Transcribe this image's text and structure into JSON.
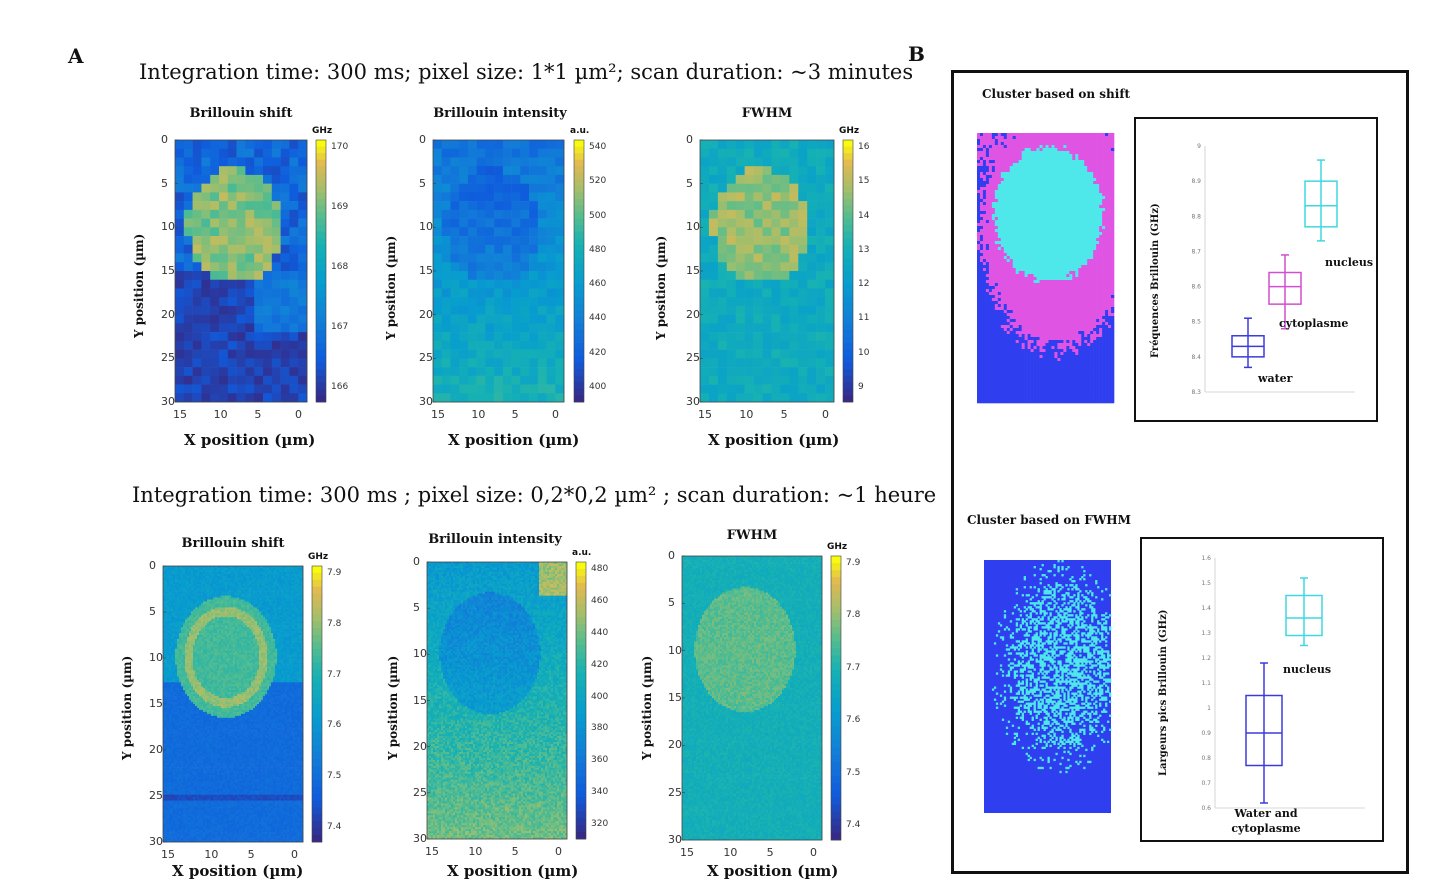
{
  "panel_a": {
    "label": "A",
    "row1": {
      "title": "Integration time: 300 ms; pixel size: 1*1 µm²; scan duration: ~3 minutes",
      "maps": [
        {
          "title": "Brillouin shift",
          "unit": "GHz",
          "cb_ticks": [
            "170",
            "169",
            "168",
            "167",
            "166"
          ]
        },
        {
          "title": "Brillouin intensity",
          "unit": "a.u.",
          "cb_ticks": [
            "540",
            "520",
            "500",
            "480",
            "460",
            "440",
            "420",
            "400"
          ]
        },
        {
          "title": "FWHM",
          "unit": "GHz",
          "cb_ticks": [
            "16",
            "15",
            "14",
            "13",
            "12",
            "11",
            "10",
            "9"
          ]
        }
      ]
    },
    "row2": {
      "title": "Integration time: 300 ms ; pixel size: 0,2*0,2 µm² ; scan duration: ~1 heure",
      "maps": [
        {
          "title": "Brillouin shift",
          "unit": "GHz",
          "cb_ticks": [
            "7.9",
            "7.8",
            "7.7",
            "7.6",
            "7.5",
            "7.4"
          ]
        },
        {
          "title": "Brillouin intensity",
          "unit": "a.u.",
          "cb_ticks": [
            "480",
            "460",
            "440",
            "420",
            "400",
            "380",
            "360",
            "340",
            "320"
          ]
        },
        {
          "title": "FWHM",
          "unit": "GHz",
          "cb_ticks": [
            "7.9",
            "7.8",
            "7.7",
            "7.6",
            "7.5",
            "7.4"
          ]
        }
      ]
    },
    "x_label": "X position (µm)",
    "y_label": "Y position (µm)",
    "x_ticks": [
      "15",
      "10",
      "5",
      "0"
    ],
    "y_ticks": [
      "0",
      "5",
      "10",
      "15",
      "20",
      "25",
      "30"
    ]
  },
  "panel_b": {
    "label": "B",
    "cluster_shift": {
      "title": "Cluster based on shift",
      "ylabel": "Fréquences Brillouin (GHz)",
      "y_ticks": [
        "9",
        "8.9",
        "8.8",
        "8.7",
        "8.6",
        "8.5",
        "8.4",
        "8.3"
      ],
      "groups": [
        {
          "label": "water",
          "color": "#3b3bdc",
          "min": 8.37,
          "q1": 8.4,
          "median": 8.43,
          "q3": 8.46,
          "max": 8.51
        },
        {
          "label": "cytoplasme",
          "color": "#d14fd1",
          "min": 8.48,
          "q1": 8.55,
          "median": 8.6,
          "q3": 8.64,
          "max": 8.69
        },
        {
          "label": "nucleus",
          "color": "#3fd8e0",
          "min": 8.73,
          "q1": 8.77,
          "median": 8.83,
          "q3": 8.9,
          "max": 8.96
        }
      ]
    },
    "cluster_fwhm": {
      "title": "Cluster based on FWHM",
      "ylabel": "Largeurs pics Brillouin (GHz)",
      "y_ticks": [
        "1.6",
        "1.5",
        "1.4",
        "1.3",
        "1.2",
        "1.1",
        "1",
        "0.9",
        "0.8",
        "0.7",
        "0.6"
      ],
      "groups": [
        {
          "label": "Water and cytoplasme",
          "color": "#3b3bdc",
          "min": 0.62,
          "q1": 0.77,
          "median": 0.9,
          "q3": 1.05,
          "max": 1.18
        },
        {
          "label": "nucleus",
          "color": "#3fd8e0",
          "min": 1.25,
          "q1": 1.29,
          "median": 1.36,
          "q3": 1.45,
          "max": 1.52
        }
      ]
    }
  }
}
